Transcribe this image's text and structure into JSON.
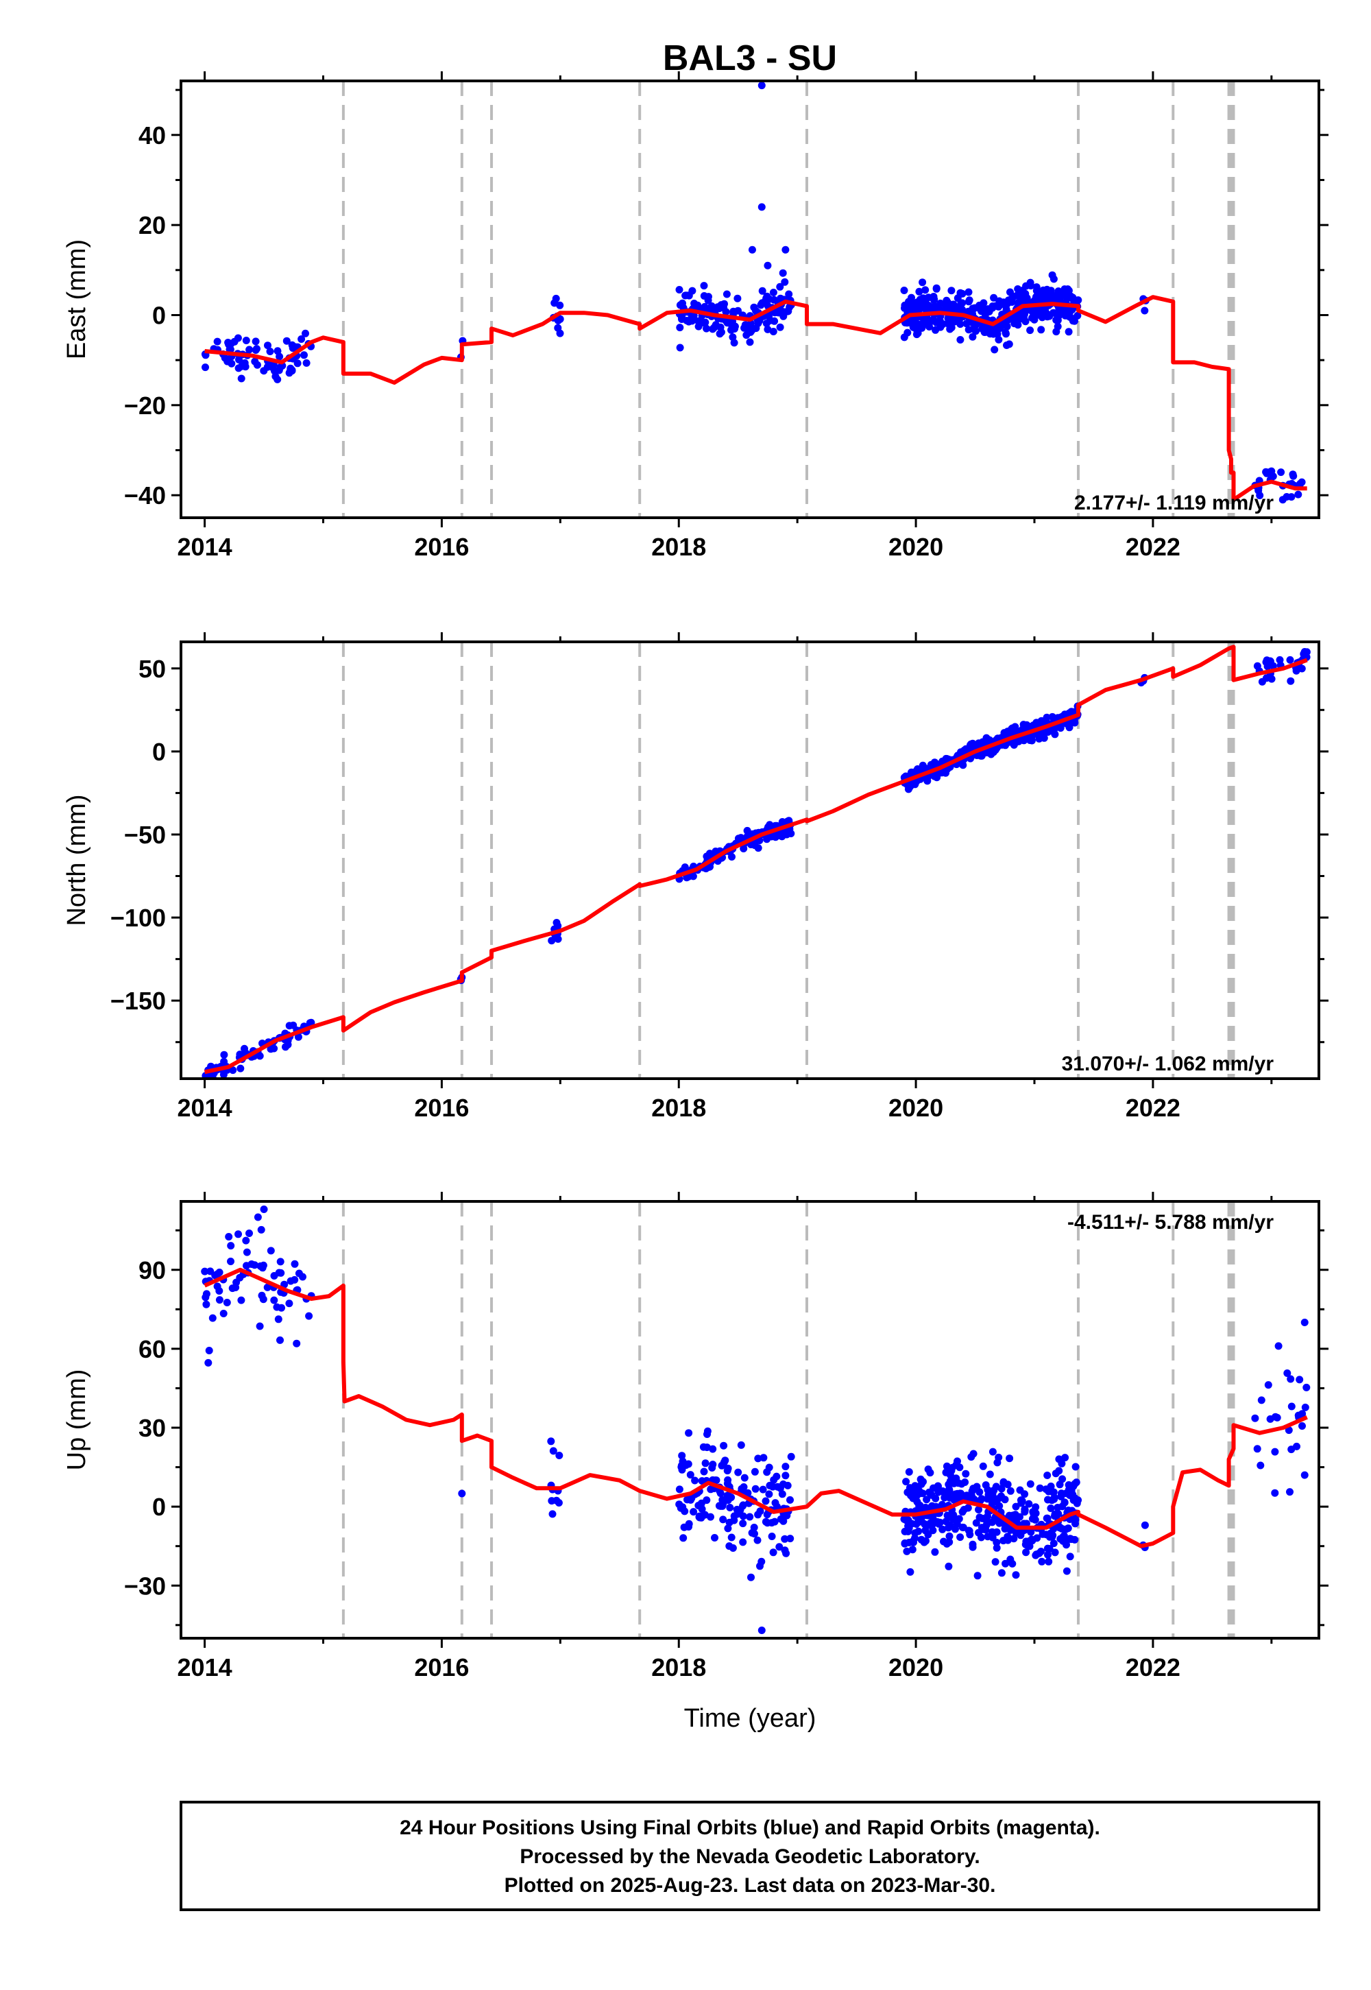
{
  "title": "BAL3 - SU",
  "x_label": "Time (year)",
  "x_ticks": [
    2014,
    2016,
    2018,
    2020,
    2022
  ],
  "footer": {
    "line1": "24 Hour Positions Using Final Orbits (blue) and Rapid Orbits (magenta).",
    "line2": "Processed by the Nevada Geodetic Laboratory.",
    "line3": "Plotted on 2025-Aug-23. Last data on 2023-Mar-30."
  },
  "colors": {
    "data": "#0000ff",
    "model": "#ff0000",
    "breaks": "#bbbbbb",
    "frame": "#000000"
  },
  "break_lines": [
    2015.17,
    2016.17,
    2016.42,
    2017.67,
    2019.08,
    2021.37,
    2022.17,
    2022.64,
    2022.66,
    2022.68
  ],
  "chart_data": [
    {
      "type": "scatter",
      "ylabel": "East (mm)",
      "rate": "2.177+/- 1.119 mm/yr",
      "xlim": [
        2013.8,
        2023.4
      ],
      "ylim": [
        -45,
        52
      ],
      "yticks": [
        -40,
        -20,
        0,
        20,
        40
      ],
      "model": [
        [
          2014.0,
          -8
        ],
        [
          2014.2,
          -8.5
        ],
        [
          2014.4,
          -9
        ],
        [
          2014.65,
          -10.5
        ],
        [
          2014.9,
          -6
        ],
        [
          2015.0,
          -5
        ],
        [
          2015.17,
          -6
        ],
        [
          2015.17,
          -13
        ],
        [
          2015.4,
          -13
        ],
        [
          2015.6,
          -15
        ],
        [
          2015.85,
          -11
        ],
        [
          2016.0,
          -9.5
        ],
        [
          2016.17,
          -10
        ],
        [
          2016.17,
          -6.5
        ],
        [
          2016.42,
          -6
        ],
        [
          2016.42,
          -3
        ],
        [
          2016.6,
          -4.5
        ],
        [
          2016.85,
          -2
        ],
        [
          2017.0,
          0.5
        ],
        [
          2017.2,
          0.5
        ],
        [
          2017.4,
          0
        ],
        [
          2017.67,
          -2
        ],
        [
          2017.67,
          -3
        ],
        [
          2017.9,
          0.5
        ],
        [
          2018.1,
          1
        ],
        [
          2018.3,
          0
        ],
        [
          2018.6,
          -1
        ],
        [
          2018.9,
          3
        ],
        [
          2019.08,
          2
        ],
        [
          2019.08,
          -2
        ],
        [
          2019.3,
          -2
        ],
        [
          2019.5,
          -3
        ],
        [
          2019.7,
          -4
        ],
        [
          2019.95,
          0
        ],
        [
          2020.2,
          0.5
        ],
        [
          2020.4,
          0
        ],
        [
          2020.65,
          -2
        ],
        [
          2020.9,
          2
        ],
        [
          2021.15,
          2.5
        ],
        [
          2021.37,
          2
        ],
        [
          2021.37,
          1
        ],
        [
          2021.6,
          -1.5
        ],
        [
          2021.85,
          2
        ],
        [
          2022.0,
          4
        ],
        [
          2022.17,
          3
        ],
        [
          2022.17,
          -10.5
        ],
        [
          2022.35,
          -10.5
        ],
        [
          2022.5,
          -11.5
        ],
        [
          2022.64,
          -12
        ],
        [
          2022.64,
          -30
        ],
        [
          2022.66,
          -32
        ],
        [
          2022.66,
          -35
        ],
        [
          2022.68,
          -35
        ],
        [
          2022.68,
          -41
        ],
        [
          2022.85,
          -38
        ],
        [
          2023.0,
          -37
        ],
        [
          2023.2,
          -38.5
        ],
        [
          2023.3,
          -38.5
        ]
      ],
      "clusters": [
        {
          "t0": 2014.0,
          "t1": 2014.9,
          "sd": 2.2,
          "n": 70
        },
        {
          "t0": 2016.15,
          "t1": 2016.18,
          "sd": 0.5,
          "n": 2
        },
        {
          "t0": 2016.92,
          "t1": 2017.0,
          "sd": 2.0,
          "n": 10
        },
        {
          "t0": 2018.0,
          "t1": 2018.95,
          "sd": 2.3,
          "n": 160
        },
        {
          "t0": 2019.9,
          "t1": 2021.37,
          "sd": 2.3,
          "n": 420
        },
        {
          "t0": 2021.9,
          "t1": 2021.95,
          "sd": 1.0,
          "n": 3
        },
        {
          "t0": 2022.85,
          "t1": 2023.3,
          "sd": 1.8,
          "n": 25
        }
      ],
      "outliers": [
        [
          2018.7,
          51
        ],
        [
          2018.7,
          24
        ],
        [
          2018.62,
          14.5
        ],
        [
          2018.9,
          14.5
        ],
        [
          2018.75,
          11
        ],
        [
          2018.6,
          -6
        ]
      ]
    },
    {
      "type": "scatter",
      "ylabel": "North (mm)",
      "rate": "31.070+/- 1.062 mm/yr",
      "xlim": [
        2013.8,
        2023.4
      ],
      "ylim": [
        -197,
        66
      ],
      "yticks": [
        -150,
        -100,
        -50,
        0,
        50
      ],
      "model": [
        [
          2014.0,
          -193
        ],
        [
          2014.2,
          -190
        ],
        [
          2014.4,
          -182
        ],
        [
          2014.6,
          -174
        ],
        [
          2014.9,
          -166
        ],
        [
          2015.17,
          -160
        ],
        [
          2015.17,
          -168
        ],
        [
          2015.4,
          -157
        ],
        [
          2015.6,
          -151
        ],
        [
          2015.85,
          -145
        ],
        [
          2016.17,
          -138
        ],
        [
          2016.17,
          -133
        ],
        [
          2016.42,
          -124
        ],
        [
          2016.42,
          -120
        ],
        [
          2016.7,
          -114
        ],
        [
          2017.0,
          -108
        ],
        [
          2017.2,
          -102
        ],
        [
          2017.45,
          -90
        ],
        [
          2017.67,
          -80
        ],
        [
          2017.67,
          -81
        ],
        [
          2017.9,
          -77
        ],
        [
          2018.15,
          -71
        ],
        [
          2018.4,
          -60
        ],
        [
          2018.7,
          -50
        ],
        [
          2019.08,
          -41
        ],
        [
          2019.08,
          -42
        ],
        [
          2019.3,
          -36
        ],
        [
          2019.6,
          -26
        ],
        [
          2019.9,
          -18
        ],
        [
          2020.2,
          -10
        ],
        [
          2020.5,
          0
        ],
        [
          2020.8,
          8
        ],
        [
          2021.1,
          15
        ],
        [
          2021.37,
          22
        ],
        [
          2021.37,
          28
        ],
        [
          2021.6,
          37
        ],
        [
          2021.9,
          43
        ],
        [
          2022.17,
          50
        ],
        [
          2022.17,
          45
        ],
        [
          2022.4,
          52
        ],
        [
          2022.64,
          62
        ],
        [
          2022.68,
          63
        ],
        [
          2022.68,
          43
        ],
        [
          2022.9,
          47
        ],
        [
          2023.1,
          50
        ],
        [
          2023.3,
          55
        ]
      ],
      "clusters": [
        {
          "t0": 2014.0,
          "t1": 2014.9,
          "sd": 2.5,
          "n": 70
        },
        {
          "t0": 2016.15,
          "t1": 2016.18,
          "sd": 0.5,
          "n": 2
        },
        {
          "t0": 2016.92,
          "t1": 2017.0,
          "sd": 2.5,
          "n": 10
        },
        {
          "t0": 2018.0,
          "t1": 2018.95,
          "sd": 2.5,
          "n": 160
        },
        {
          "t0": 2019.9,
          "t1": 2021.37,
          "sd": 2.5,
          "n": 420
        },
        {
          "t0": 2021.9,
          "t1": 2021.95,
          "sd": 2.0,
          "n": 3
        },
        {
          "t0": 2022.85,
          "t1": 2023.3,
          "sd": 3.5,
          "n": 25
        }
      ],
      "outliers": [
        [
          2016.17,
          -136
        ],
        [
          2016.95,
          -107
        ],
        [
          2023.28,
          60
        ]
      ]
    },
    {
      "type": "scatter",
      "ylabel": "Up (mm)",
      "rate": "-4.511+/- 5.788 mm/yr",
      "xlim": [
        2013.8,
        2023.4
      ],
      "ylim": [
        -50,
        116
      ],
      "yticks": [
        -30,
        0,
        30,
        60,
        90
      ],
      "model": [
        [
          2014.0,
          84
        ],
        [
          2014.15,
          87
        ],
        [
          2014.3,
          90
        ],
        [
          2014.5,
          86
        ],
        [
          2014.7,
          82
        ],
        [
          2014.9,
          79
        ],
        [
          2015.05,
          80
        ],
        [
          2015.17,
          84
        ],
        [
          2015.17,
          55
        ],
        [
          2015.18,
          40
        ],
        [
          2015.3,
          42
        ],
        [
          2015.5,
          38
        ],
        [
          2015.7,
          33
        ],
        [
          2015.9,
          31
        ],
        [
          2016.1,
          33
        ],
        [
          2016.17,
          35
        ],
        [
          2016.17,
          25
        ],
        [
          2016.3,
          27
        ],
        [
          2016.42,
          25
        ],
        [
          2016.42,
          15
        ],
        [
          2016.6,
          11
        ],
        [
          2016.8,
          7
        ],
        [
          2017.0,
          7
        ],
        [
          2017.25,
          12
        ],
        [
          2017.5,
          10
        ],
        [
          2017.67,
          6
        ],
        [
          2017.9,
          3
        ],
        [
          2018.1,
          5
        ],
        [
          2018.25,
          9
        ],
        [
          2018.5,
          5
        ],
        [
          2018.8,
          -2
        ],
        [
          2019.08,
          0
        ],
        [
          2019.2,
          5
        ],
        [
          2019.35,
          6
        ],
        [
          2019.55,
          2
        ],
        [
          2019.8,
          -3
        ],
        [
          2020.0,
          -3
        ],
        [
          2020.25,
          -1
        ],
        [
          2020.4,
          2
        ],
        [
          2020.6,
          0
        ],
        [
          2020.85,
          -8
        ],
        [
          2021.1,
          -8
        ],
        [
          2021.3,
          -3
        ],
        [
          2021.37,
          -2
        ],
        [
          2021.37,
          -3
        ],
        [
          2021.6,
          -8
        ],
        [
          2021.9,
          -15
        ],
        [
          2022.0,
          -14
        ],
        [
          2022.17,
          -10
        ],
        [
          2022.17,
          0
        ],
        [
          2022.25,
          13
        ],
        [
          2022.4,
          14
        ],
        [
          2022.55,
          10
        ],
        [
          2022.64,
          8
        ],
        [
          2022.64,
          18
        ],
        [
          2022.68,
          22
        ],
        [
          2022.68,
          31
        ],
        [
          2022.9,
          28
        ],
        [
          2023.1,
          30
        ],
        [
          2023.3,
          34
        ]
      ],
      "clusters": [
        {
          "t0": 2014.0,
          "t1": 2014.9,
          "sd": 9.0,
          "n": 70
        },
        {
          "t0": 2016.92,
          "t1": 2017.0,
          "sd": 10.0,
          "n": 10
        },
        {
          "t0": 2018.0,
          "t1": 2018.95,
          "sd": 10.0,
          "n": 160
        },
        {
          "t0": 2019.9,
          "t1": 2021.37,
          "sd": 9.0,
          "n": 420
        },
        {
          "t0": 2021.9,
          "t1": 2021.95,
          "sd": 6.0,
          "n": 3
        },
        {
          "t0": 2022.85,
          "t1": 2023.3,
          "sd": 12.0,
          "n": 25
        }
      ],
      "outliers": [
        [
          2014.5,
          113
        ],
        [
          2014.45,
          110
        ],
        [
          2016.17,
          5
        ],
        [
          2018.7,
          -47
        ],
        [
          2023.28,
          70
        ],
        [
          2023.28,
          12
        ]
      ]
    }
  ]
}
